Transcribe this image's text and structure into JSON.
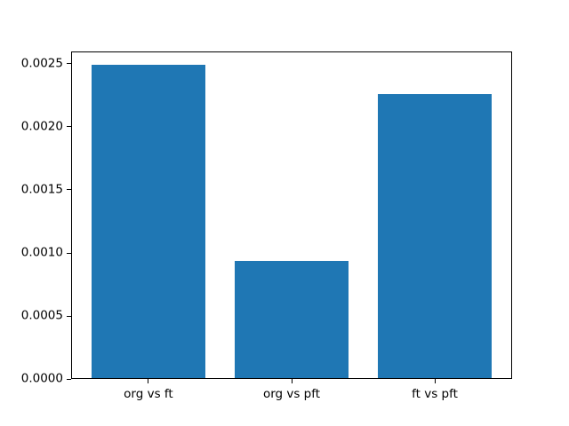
{
  "chart_data": {
    "type": "bar",
    "categories": [
      "org vs ft",
      "org vs pft",
      "ft vs pft"
    ],
    "values": [
      0.00248,
      0.00093,
      0.00225
    ],
    "title": "",
    "xlabel": "",
    "ylabel": "",
    "ylim": [
      0,
      0.0026
    ],
    "yticks": [
      {
        "value": 0.0,
        "label": "0.0000"
      },
      {
        "value": 0.0005,
        "label": "0.0005"
      },
      {
        "value": 0.001,
        "label": "0.0010"
      },
      {
        "value": 0.0015,
        "label": "0.0015"
      },
      {
        "value": 0.002,
        "label": "0.0020"
      },
      {
        "value": 0.0025,
        "label": "0.0025"
      }
    ],
    "bar_color": "#1f77b4",
    "bar_width_data_units": 0.8,
    "x_margin_fraction": 0.05,
    "grid": false,
    "legend_position": "none",
    "background_color": "#ffffff",
    "spine_color": "#000000"
  }
}
